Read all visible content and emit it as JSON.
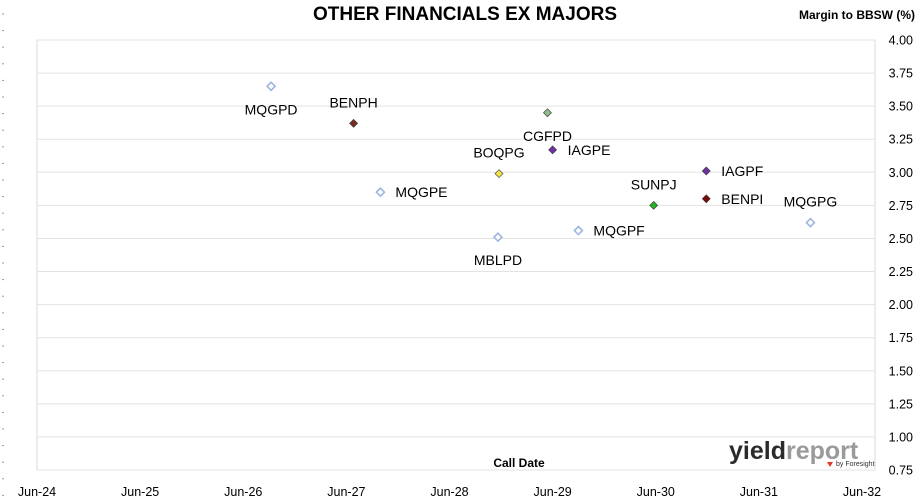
{
  "chart_data": {
    "type": "scatter",
    "title": "OTHER FINANCIALS EX MAJORS",
    "ylabel": "Margin to BBSW (%)",
    "xlabel": "Call Date",
    "ylim": [
      0.75,
      4.0
    ],
    "yticks": [
      "0.75",
      "1.00",
      "1.25",
      "1.50",
      "1.75",
      "2.00",
      "2.25",
      "2.50",
      "2.75",
      "3.00",
      "3.25",
      "3.50",
      "3.75",
      "4.00"
    ],
    "xlim": [
      0,
      8
    ],
    "xticks": [
      "Jun-24",
      "Jun-25",
      "Jun-26",
      "Jun-27",
      "Jun-28",
      "Jun-29",
      "Jun-30",
      "Jun-31",
      "Jun-32"
    ],
    "grid": "horizontal",
    "points": [
      {
        "label": "MQGPD",
        "x": 2.27,
        "y": 3.65,
        "marker": "hollow",
        "color": "#9db6df",
        "label_pos": "below"
      },
      {
        "label": "BENPH",
        "x": 3.07,
        "y": 3.37,
        "marker": "filled",
        "color": "#7a2a1f",
        "label_pos": "above"
      },
      {
        "label": "MQGPE",
        "x": 3.33,
        "y": 2.85,
        "marker": "hollow",
        "color": "#9db6df",
        "label_pos": "right"
      },
      {
        "label": "CGFPD",
        "x": 4.95,
        "y": 3.45,
        "marker": "filled",
        "color": "#8fbc8f",
        "label_pos": "below"
      },
      {
        "label": "BOQPG",
        "x": 4.48,
        "y": 2.99,
        "marker": "filled",
        "color": "#f2e24a",
        "label_pos": "above"
      },
      {
        "label": "IAGPE",
        "x": 5.0,
        "y": 3.17,
        "marker": "filled",
        "color": "#7030a0",
        "label_pos": "right"
      },
      {
        "label": "MBLPD",
        "x": 4.47,
        "y": 2.51,
        "marker": "hollow",
        "color": "#9db6df",
        "label_pos": "below"
      },
      {
        "label": "MQGPF",
        "x": 5.25,
        "y": 2.56,
        "marker": "hollow",
        "color": "#9db6df",
        "label_pos": "right"
      },
      {
        "label": "SUNPJ",
        "x": 5.98,
        "y": 2.75,
        "marker": "filled",
        "color": "#22b222",
        "label_pos": "above"
      },
      {
        "label": "IAGPF",
        "x": 6.49,
        "y": 3.01,
        "marker": "filled",
        "color": "#7030a0",
        "label_pos": "right"
      },
      {
        "label": "BENPI",
        "x": 6.49,
        "y": 2.8,
        "marker": "filled",
        "color": "#7a0a0a",
        "label_pos": "right"
      },
      {
        "label": "MQGPG",
        "x": 7.5,
        "y": 2.62,
        "marker": "hollow",
        "color": "#9db6df",
        "label_pos": "above"
      }
    ]
  },
  "logo": {
    "text_yield": "yield",
    "text_report": "report",
    "sub": "by Foresight",
    "color_yield": "#2b2b2b",
    "color_report": "#9a9a9a",
    "accent": "#e03a2a"
  }
}
